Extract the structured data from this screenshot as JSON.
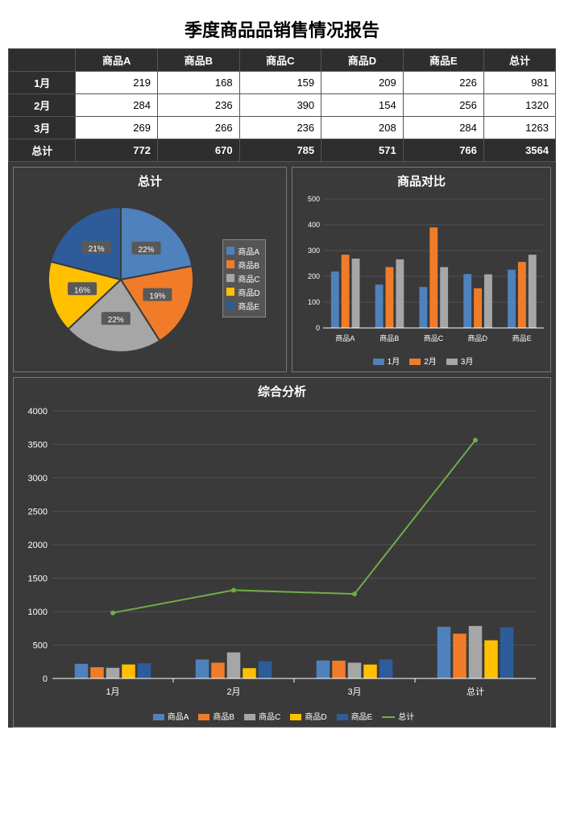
{
  "title": "季度商品品销售情况报告",
  "colors": {
    "bg": "#3a3a3a",
    "grid": "#666666",
    "text": "#ffffff",
    "productA": "#4f81bd",
    "productB": "#f07c2a",
    "productC": "#a6a6a6",
    "productD": "#ffc000",
    "productE": "#2e5c9a",
    "total_line": "#70ad47",
    "pie_label_bg": "#595959"
  },
  "table": {
    "columns": [
      "",
      "商品A",
      "商品B",
      "商品C",
      "商品D",
      "商品E",
      "总计"
    ],
    "rows": [
      [
        "1月",
        219,
        168,
        159,
        209,
        226,
        981
      ],
      [
        "2月",
        284,
        236,
        390,
        154,
        256,
        1320
      ],
      [
        "3月",
        269,
        266,
        236,
        208,
        284,
        1263
      ]
    ],
    "totals": [
      "总计",
      772,
      670,
      785,
      571,
      766,
      3564
    ]
  },
  "pie": {
    "title": "总计",
    "slices": [
      {
        "label": "商品A",
        "pct": 22,
        "color": "#4f81bd"
      },
      {
        "label": "商品B",
        "pct": 19,
        "color": "#f07c2a"
      },
      {
        "label": "商品C",
        "pct": 22,
        "color": "#a6a6a6"
      },
      {
        "label": "商品D",
        "pct": 16,
        "color": "#ffc000"
      },
      {
        "label": "商品E",
        "pct": 21,
        "color": "#2e5c9a"
      }
    ]
  },
  "compare": {
    "title": "商品对比",
    "ylim": [
      0,
      500
    ],
    "ytick_step": 100,
    "categories": [
      "商品A",
      "商品B",
      "商品C",
      "商品D",
      "商品E"
    ],
    "series": [
      {
        "name": "1月",
        "color": "#4f81bd",
        "values": [
          219,
          168,
          159,
          209,
          226
        ]
      },
      {
        "name": "2月",
        "color": "#f07c2a",
        "values": [
          284,
          236,
          390,
          154,
          256
        ]
      },
      {
        "name": "3月",
        "color": "#a6a6a6",
        "values": [
          269,
          266,
          236,
          208,
          284
        ]
      }
    ]
  },
  "analysis": {
    "title": "综合分析",
    "ylim": [
      0,
      4000
    ],
    "ytick_step": 500,
    "categories": [
      "1月",
      "2月",
      "3月",
      "总计"
    ],
    "series": [
      {
        "name": "商品A",
        "color": "#4f81bd",
        "values": [
          219,
          284,
          269,
          772
        ]
      },
      {
        "name": "商品B",
        "color": "#f07c2a",
        "values": [
          168,
          236,
          266,
          670
        ]
      },
      {
        "name": "商品C",
        "color": "#a6a6a6",
        "values": [
          159,
          390,
          236,
          785
        ]
      },
      {
        "name": "商品D",
        "color": "#ffc000",
        "values": [
          209,
          154,
          208,
          571
        ]
      },
      {
        "name": "商品E",
        "color": "#2e5c9a",
        "values": [
          226,
          256,
          284,
          766
        ]
      }
    ],
    "line": {
      "name": "总计",
      "color": "#70ad47",
      "values": [
        981,
        1320,
        1263,
        3564
      ]
    }
  }
}
